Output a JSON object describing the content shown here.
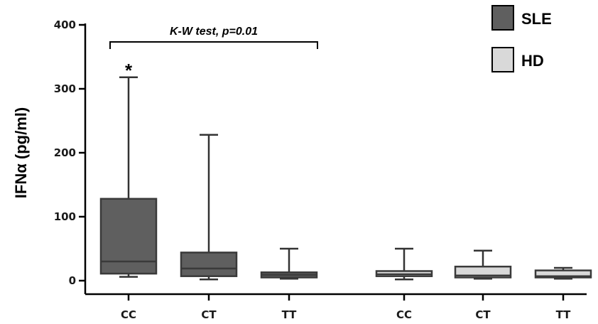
{
  "chart_data": {
    "type": "boxplot",
    "ylabel": "IFNα (pg/ml)",
    "ylim": [
      0,
      400
    ],
    "yticks": [
      0,
      100,
      200,
      300,
      400
    ],
    "categories": [
      "CC",
      "CT",
      "TT",
      "CC",
      "CT",
      "TT"
    ],
    "series": [
      {
        "name": "SLE",
        "color": "#5f5f5f",
        "boxes": [
          {
            "category": "CC",
            "min": 6,
            "q1": 11,
            "median": 30,
            "q3": 128,
            "max": 318
          },
          {
            "category": "CT",
            "min": 2,
            "q1": 7,
            "median": 19,
            "q3": 44,
            "max": 228
          },
          {
            "category": "TT",
            "min": 3,
            "q1": 5,
            "median": 9,
            "q3": 13,
            "max": 50
          }
        ]
      },
      {
        "name": "HD",
        "color": "#d9d9d9",
        "boxes": [
          {
            "category": "CC",
            "min": 2,
            "q1": 7,
            "median": 10,
            "q3": 15,
            "max": 50
          },
          {
            "category": "CT",
            "min": 3,
            "q1": 5,
            "median": 8,
            "q3": 22,
            "max": 47
          },
          {
            "category": "TT",
            "min": 3,
            "q1": 5,
            "median": 7,
            "q3": 16,
            "max": 20
          }
        ]
      }
    ],
    "legend": {
      "position": "top-right",
      "items": [
        "SLE",
        "HD"
      ]
    },
    "annotation": {
      "text": "K-W test, p=0.01",
      "star": "*"
    }
  }
}
